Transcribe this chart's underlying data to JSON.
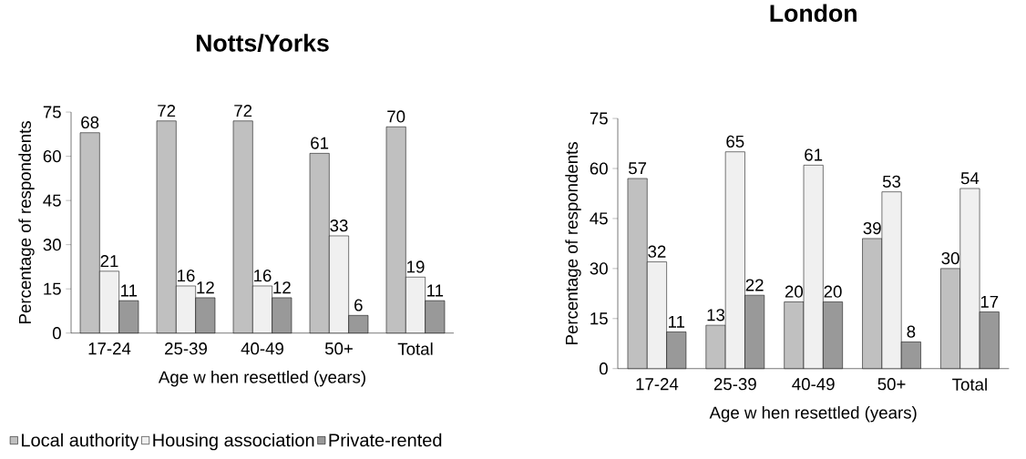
{
  "chart_data": [
    {
      "type": "bar",
      "title": "Notts/Yorks",
      "xlabel": "Age w hen resettled (years)",
      "ylabel": "Percentage of respondents",
      "categories": [
        "17-24",
        "25-39",
        "40-49",
        "50+",
        "Total"
      ],
      "series": [
        {
          "name": "Local authority",
          "color": "#c0c0c0",
          "values": [
            68,
            72,
            72,
            61,
            70
          ]
        },
        {
          "name": "Housing association",
          "color": "#f0f0f0",
          "values": [
            21,
            16,
            16,
            33,
            19
          ]
        },
        {
          "name": "Private-rented",
          "color": "#999999",
          "values": [
            11,
            12,
            12,
            6,
            11
          ]
        }
      ],
      "ylim": [
        0,
        75
      ],
      "yticks": [
        0,
        15,
        30,
        45,
        60,
        75
      ],
      "data_labels": true,
      "legend": "bottom"
    },
    {
      "type": "bar",
      "title": "London",
      "xlabel": "Age w hen resettled (years)",
      "ylabel": "Percentage of respondents",
      "categories": [
        "17-24",
        "25-39",
        "40-49",
        "50+",
        "Total"
      ],
      "series": [
        {
          "color": "#c0c0c0",
          "values": [
            57,
            13,
            20,
            39,
            30
          ]
        },
        {
          "color": "#f0f0f0",
          "values": [
            32,
            65,
            61,
            53,
            54
          ]
        },
        {
          "color": "#999999",
          "values": [
            11,
            22,
            20,
            8,
            17
          ]
        }
      ],
      "ylim": [
        0,
        75
      ],
      "yticks": [
        0,
        15,
        30,
        45,
        60,
        75
      ],
      "data_labels": true
    }
  ]
}
